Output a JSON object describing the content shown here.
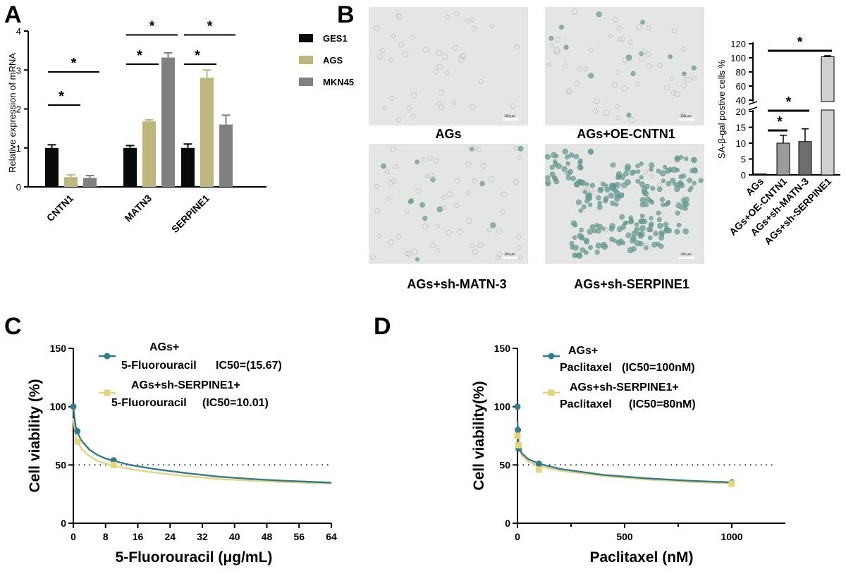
{
  "panels": {
    "A": "A",
    "B": "B",
    "C": "C",
    "D": "D"
  },
  "micrographs": {
    "captions": [
      "AGs",
      "AGs+OE-CNTN1",
      "AGs+sh-MATN-3",
      "AGs+sh-SERPINE1"
    ],
    "scale_bar": "200 μm",
    "background": "#e4e6e3",
    "stain_color": "#6a9f96"
  },
  "chart_data": [
    {
      "type": "bar",
      "panel": "A",
      "categories": [
        "CNTN1",
        "MATN3",
        "SERPINE1"
      ],
      "series": [
        {
          "name": "GES1",
          "color": "#0a0a0a",
          "values": [
            1.0,
            1.0,
            1.0
          ],
          "errors": [
            0.08,
            0.06,
            0.1
          ]
        },
        {
          "name": "AGS",
          "color": "#bdb77a",
          "values": [
            0.25,
            1.68,
            2.8
          ],
          "errors": [
            0.06,
            0.04,
            0.2
          ]
        },
        {
          "name": "MKN45",
          "color": "#808080",
          "values": [
            0.23,
            3.32,
            1.6
          ],
          "errors": [
            0.06,
            0.12,
            0.24
          ]
        }
      ],
      "ylabel": "Relative expression of mRNA",
      "ylim": [
        0,
        4
      ],
      "yticks": [
        "0",
        "1",
        "2",
        "3",
        "4"
      ],
      "significance": [
        {
          "category": 0,
          "from": 0,
          "to": 1,
          "level": 2.1,
          "label": "*"
        },
        {
          "category": 0,
          "from": 0,
          "to": 2,
          "level": 2.95,
          "label": "*"
        },
        {
          "category": 1,
          "from": 0,
          "to": 1,
          "level": 3.15,
          "label": "*"
        },
        {
          "category": 1,
          "from": 0,
          "to": 2,
          "level": 3.9,
          "label": "*"
        },
        {
          "category": 2,
          "from": 0,
          "to": 1,
          "level": 3.15,
          "label": "*"
        },
        {
          "category": 2,
          "from": 0,
          "to": 2,
          "level": 3.9,
          "label": "*"
        }
      ],
      "grid": false,
      "legend": "right"
    },
    {
      "type": "bar",
      "panel": "B",
      "categories": [
        "AGs",
        "AGs+OE-CNTN1",
        "AGs+sh-MATN-3",
        "AGs+sh-SERPINE1"
      ],
      "values": [
        0.3,
        10.0,
        10.5,
        101.5
      ],
      "errors": [
        0,
        2.5,
        4.0,
        1.5
      ],
      "colors": [
        "#1a1a1a",
        "#9a9a9a",
        "#6e6e6e",
        "#d0d0d0"
      ],
      "ylabel": "SA-β-gal postive cells %",
      "ylim": [
        0,
        120
      ],
      "axis_break": [
        20,
        40
      ],
      "yticks": [
        "0",
        "5",
        "10",
        "15",
        "20",
        "40",
        "60",
        "80",
        "100",
        "120"
      ],
      "significance": [
        {
          "from": 0,
          "to": 1,
          "label": "*"
        },
        {
          "from": 0,
          "to": 2,
          "label": "*"
        },
        {
          "from": 0,
          "to": 3,
          "label": "*"
        }
      ],
      "grid": false
    },
    {
      "type": "line",
      "panel": "C",
      "xlabel": "5-Fluorouracil (μg/mL)",
      "ylabel": "Cell viability (%)",
      "xlim": [
        0,
        64
      ],
      "ylim": [
        0,
        150
      ],
      "xticks": [
        "0",
        "8",
        "16",
        "24",
        "32",
        "40",
        "48",
        "56",
        "64"
      ],
      "yticks": [
        "0",
        "50",
        "100",
        "150"
      ],
      "reference_line": 50,
      "series": [
        {
          "name_lines": [
            "AGs+",
            "5-Fluorouracil"
          ],
          "ic50_label": "IC50=(15.67)",
          "color": "#2f7d8c",
          "marker": "circle",
          "points": [
            [
              0,
              100
            ],
            [
              1,
              79
            ],
            [
              10,
              54
            ]
          ],
          "curve": [
            [
              0,
              100
            ],
            [
              0.3,
              90
            ],
            [
              0.6,
              83
            ],
            [
              1,
              78
            ],
            [
              2,
              71
            ],
            [
              4,
              63
            ],
            [
              6,
              58.5
            ],
            [
              8,
              55.5
            ],
            [
              10,
              53.5
            ],
            [
              14,
              50
            ],
            [
              20,
              46.5
            ],
            [
              28,
              43
            ],
            [
              36,
              40
            ],
            [
              44,
              38
            ],
            [
              52,
              36.5
            ],
            [
              64,
              34.8
            ]
          ]
        },
        {
          "name_lines": [
            "AGs+sh-SERPINE1+",
            "5-Fluorouracil"
          ],
          "ic50_label": "(IC50=10.01)",
          "color": "#e6d47a",
          "marker": "square",
          "points": [
            [
              1,
              70
            ],
            [
              10,
              50
            ]
          ],
          "curve": [
            [
              0,
              90
            ],
            [
              0.5,
              76
            ],
            [
              1,
              70
            ],
            [
              2,
              64
            ],
            [
              4,
              57.5
            ],
            [
              6,
              53.5
            ],
            [
              8,
              51
            ],
            [
              10,
              49.5
            ],
            [
              14,
              46.5
            ],
            [
              20,
              43.5
            ],
            [
              28,
              40.5
            ],
            [
              36,
              38
            ],
            [
              44,
              36.5
            ],
            [
              52,
              35.3
            ],
            [
              64,
              34
            ]
          ]
        }
      ],
      "legend": "top"
    },
    {
      "type": "line",
      "panel": "D",
      "xlabel": "Paclitaxel (nM)",
      "ylabel": "Cell viability(%)",
      "xlim": [
        0,
        1250
      ],
      "ylim": [
        0,
        150
      ],
      "xticks": [
        "0",
        "500",
        "1000"
      ],
      "yticks": [
        "0",
        "50",
        "100",
        "150"
      ],
      "reference_line": 50,
      "series": [
        {
          "name_lines": [
            "AGs+",
            "Paclitaxel"
          ],
          "ic50_label": "(IC50=100nM)",
          "color": "#2f7d8c",
          "marker": "circle",
          "points": [
            [
              0,
              100
            ],
            [
              2,
              80
            ],
            [
              5,
              64
            ],
            [
              100,
              51
            ],
            [
              1000,
              35
            ]
          ],
          "curve": [
            [
              0,
              88
            ],
            [
              5,
              68
            ],
            [
              20,
              60
            ],
            [
              50,
              55
            ],
            [
              100,
              51
            ],
            [
              200,
              46.5
            ],
            [
              400,
              41.5
            ],
            [
              600,
              38.5
            ],
            [
              800,
              36.5
            ],
            [
              1000,
              35
            ]
          ]
        },
        {
          "name_lines": [
            "AGs+sh-SERPINE1+",
            "Paclitaxel"
          ],
          "ic50_label": "(IC50=80nM)",
          "color": "#e6d47a",
          "marker": "square",
          "points": [
            [
              0,
              75
            ],
            [
              5,
              67
            ],
            [
              100,
              46
            ],
            [
              1000,
              34
            ]
          ],
          "curve": [
            [
              0,
              80
            ],
            [
              5,
              66
            ],
            [
              20,
              58
            ],
            [
              50,
              53
            ],
            [
              100,
              49
            ],
            [
              200,
              45
            ],
            [
              400,
              40.5
            ],
            [
              600,
              37.5
            ],
            [
              800,
              35.5
            ],
            [
              1000,
              34
            ]
          ]
        }
      ],
      "legend": "top"
    }
  ]
}
